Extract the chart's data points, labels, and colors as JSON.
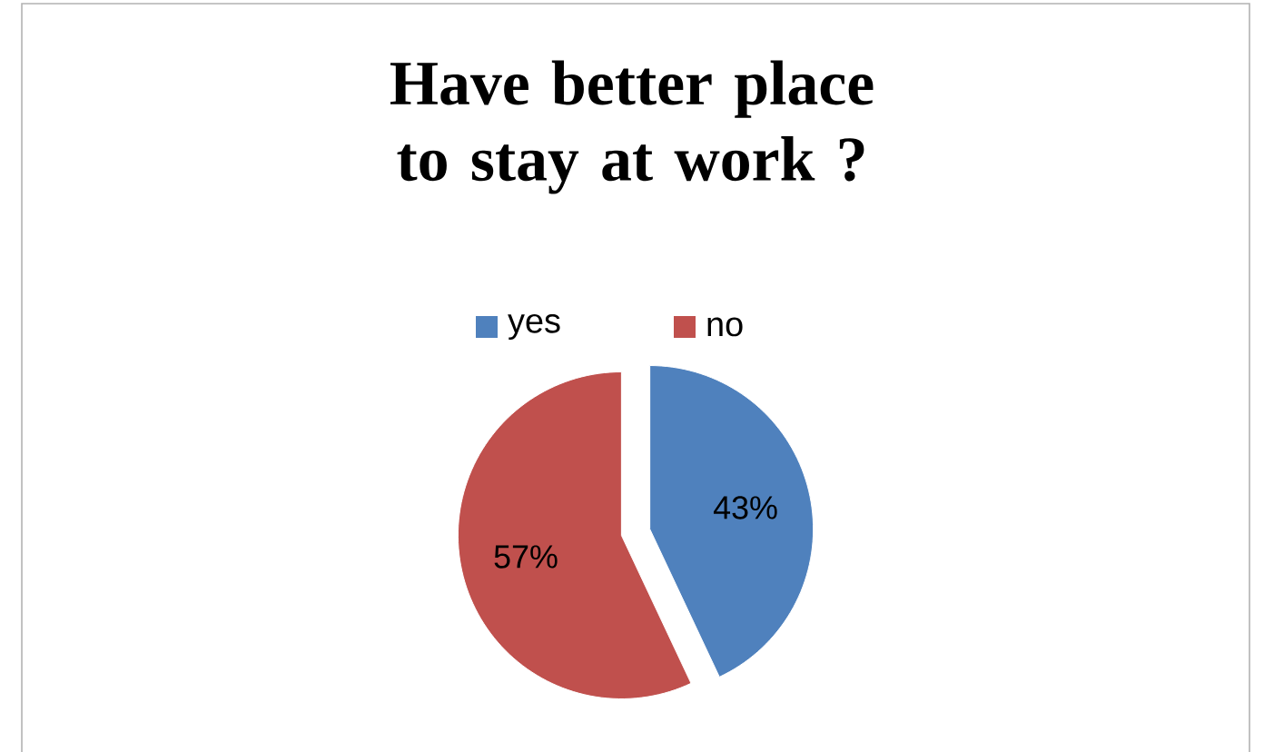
{
  "chart_data": {
    "type": "pie",
    "title": "Have better place to stay at work ?",
    "categories": [
      "yes",
      "no"
    ],
    "values": [
      43,
      57
    ],
    "colors": [
      "#4f81bd",
      "#c0504d"
    ],
    "value_labels": [
      "43%",
      "57%"
    ],
    "legend": "top"
  }
}
